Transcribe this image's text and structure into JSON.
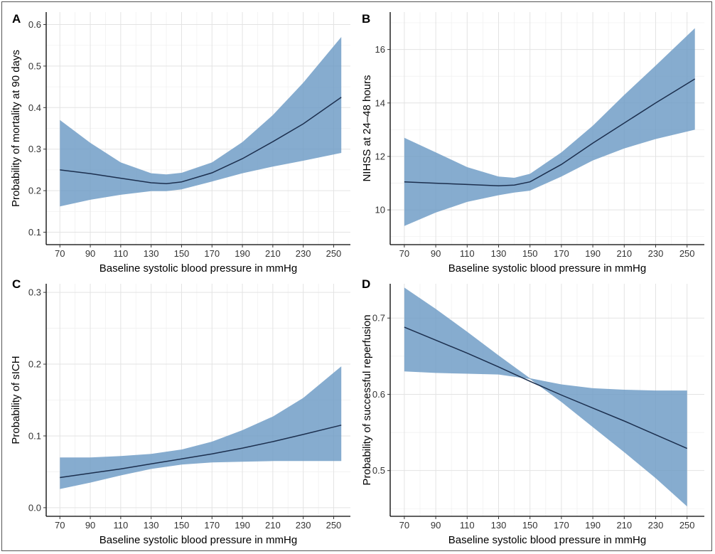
{
  "chart_data": [
    {
      "panel": "A",
      "type": "line",
      "xlabel": "Baseline systolic blood pressure in mmHg",
      "ylabel": "Probability of mortality at 90 days",
      "xticks": [
        70,
        90,
        110,
        130,
        150,
        170,
        190,
        210,
        230,
        250
      ],
      "yticks": [
        0.1,
        0.2,
        0.3,
        0.4,
        0.5,
        0.6
      ],
      "xlim": [
        61,
        261
      ],
      "ylim": [
        0.07,
        0.63
      ],
      "grid": true,
      "x": [
        70,
        90,
        110,
        130,
        140,
        150,
        170,
        190,
        210,
        230,
        255
      ],
      "y": [
        0.25,
        0.241,
        0.23,
        0.219,
        0.217,
        0.221,
        0.243,
        0.277,
        0.318,
        0.361,
        0.425
      ],
      "lower": [
        0.162,
        0.178,
        0.19,
        0.199,
        0.199,
        0.203,
        0.222,
        0.242,
        0.258,
        0.272,
        0.291
      ],
      "upper": [
        0.37,
        0.315,
        0.268,
        0.242,
        0.239,
        0.243,
        0.268,
        0.317,
        0.382,
        0.46,
        0.57
      ]
    },
    {
      "panel": "B",
      "type": "line",
      "xlabel": "Baseline systolic blood pressure in mmHg",
      "ylabel": "NIHSS at 24–48 hours",
      "xticks": [
        70,
        90,
        110,
        130,
        150,
        170,
        190,
        210,
        230,
        250
      ],
      "yticks": [
        10,
        12,
        14,
        16
      ],
      "xlim": [
        61,
        261
      ],
      "ylim": [
        8.7,
        17.4
      ],
      "grid": true,
      "x": [
        70,
        90,
        110,
        130,
        140,
        150,
        170,
        190,
        210,
        230,
        255
      ],
      "y": [
        11.05,
        11.0,
        10.95,
        10.9,
        10.93,
        11.05,
        11.7,
        12.5,
        13.25,
        14.0,
        14.9
      ],
      "lower": [
        9.4,
        9.9,
        10.3,
        10.55,
        10.65,
        10.72,
        11.25,
        11.85,
        12.3,
        12.65,
        13.0
      ],
      "upper": [
        12.7,
        12.15,
        11.6,
        11.25,
        11.2,
        11.35,
        12.15,
        13.15,
        14.3,
        15.4,
        16.8
      ]
    },
    {
      "panel": "C",
      "type": "line",
      "xlabel": "Baseline systolic blood pressure in mmHg",
      "ylabel": "Probability of sICH",
      "xticks": [
        70,
        90,
        110,
        130,
        150,
        170,
        190,
        210,
        230,
        250
      ],
      "yticks": [
        0.0,
        0.1,
        0.2,
        0.3
      ],
      "xlim": [
        61,
        261
      ],
      "ylim": [
        -0.012,
        0.312
      ],
      "grid": true,
      "x": [
        70,
        90,
        110,
        130,
        150,
        170,
        190,
        210,
        230,
        255
      ],
      "y": [
        0.042,
        0.048,
        0.054,
        0.061,
        0.068,
        0.075,
        0.083,
        0.092,
        0.102,
        0.115
      ],
      "lower": [
        0.026,
        0.035,
        0.045,
        0.054,
        0.06,
        0.063,
        0.064,
        0.065,
        0.065,
        0.065
      ],
      "upper": [
        0.07,
        0.07,
        0.072,
        0.075,
        0.081,
        0.092,
        0.108,
        0.127,
        0.153,
        0.197
      ]
    },
    {
      "panel": "D",
      "type": "line",
      "xlabel": "Baseline systolic blood pressure in mmHg",
      "ylabel": "Probability of successful reperfusion",
      "xticks": [
        70,
        90,
        110,
        130,
        150,
        170,
        190,
        210,
        230,
        250
      ],
      "yticks": [
        0.5,
        0.6,
        0.7
      ],
      "xlim": [
        61,
        261
      ],
      "ylim": [
        0.44,
        0.745
      ],
      "grid": true,
      "x": [
        70,
        90,
        110,
        130,
        150,
        170,
        190,
        210,
        230,
        250
      ],
      "y": [
        0.688,
        0.671,
        0.654,
        0.636,
        0.617,
        0.599,
        0.582,
        0.565,
        0.547,
        0.529
      ],
      "lower": [
        0.63,
        0.628,
        0.627,
        0.626,
        0.62,
        0.59,
        0.557,
        0.524,
        0.49,
        0.453
      ],
      "upper": [
        0.74,
        0.712,
        0.682,
        0.651,
        0.621,
        0.613,
        0.608,
        0.606,
        0.605,
        0.605
      ]
    }
  ]
}
